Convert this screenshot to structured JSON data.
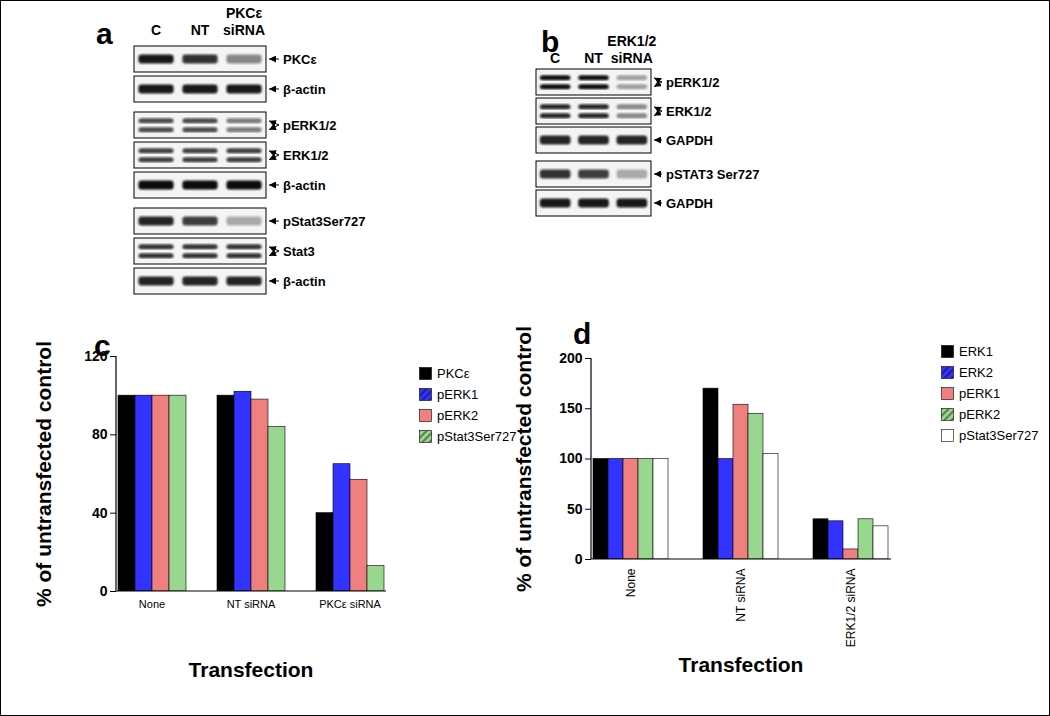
{
  "panels": [
    {
      "panel": "a",
      "lanes": [
        "C",
        "NT",
        "PKCε siRNA"
      ],
      "blocks": [
        [
          {
            "protein": "PKCε",
            "bands": 1,
            "intensity": [
              0.9,
              0.8,
              0.45
            ]
          },
          {
            "protein": "β-actin",
            "bands": 1,
            "intensity": [
              0.9,
              0.9,
              0.9
            ]
          }
        ],
        [
          {
            "protein": "pERK1/2",
            "bands": 2,
            "intensity": [
              0.7,
              0.7,
              0.5
            ]
          },
          {
            "protein": "ERK1/2",
            "bands": 2,
            "intensity": [
              0.75,
              0.75,
              0.75
            ]
          },
          {
            "protein": "β-actin",
            "bands": 1,
            "intensity": [
              0.95,
              0.95,
              0.95
            ]
          }
        ],
        [
          {
            "protein": "pStat3Ser727",
            "bands": 1,
            "intensity": [
              0.85,
              0.75,
              0.3
            ]
          },
          {
            "protein": "Stat3",
            "bands": 2,
            "intensity": [
              0.8,
              0.8,
              0.8
            ]
          },
          {
            "protein": "β-actin",
            "bands": 1,
            "intensity": [
              0.85,
              0.85,
              0.85
            ]
          }
        ]
      ]
    },
    {
      "panel": "b",
      "lanes": [
        "C",
        "NT",
        "ERK1/2 siRNA"
      ],
      "blocks": [
        [
          {
            "protein": "pERK1/2",
            "bands": 2,
            "intensity": [
              0.95,
              0.95,
              0.35
            ]
          },
          {
            "protein": "ERK1/2",
            "bands": 2,
            "intensity": [
              0.85,
              0.85,
              0.45
            ]
          },
          {
            "protein": "GAPDH",
            "bands": 1,
            "intensity": [
              0.85,
              0.85,
              0.85
            ]
          }
        ],
        [
          {
            "protein": "pSTAT3 Ser727",
            "bands": 1,
            "intensity": [
              0.8,
              0.75,
              0.3
            ]
          },
          {
            "protein": "GAPDH",
            "bands": 1,
            "intensity": [
              0.9,
              0.9,
              0.9
            ]
          }
        ]
      ]
    }
  ],
  "chart_data": [
    {
      "panel": "c",
      "type": "bar",
      "x_label": "Transfection",
      "y_label": "% of untransfected control",
      "categories": [
        "None",
        "NT siRNA",
        "PKCε siRNA"
      ],
      "series": [
        {
          "name": "PKCε",
          "color": "#000000",
          "values": [
            100,
            100,
            40
          ]
        },
        {
          "name": "pERK1",
          "color": "#3333ff",
          "values": [
            100,
            102,
            65
          ]
        },
        {
          "name": "pERK2",
          "color": "#f08080",
          "values": [
            100,
            98,
            57
          ]
        },
        {
          "name": "pStat3Ser727",
          "color": "#99d68f",
          "values": [
            100,
            84,
            13
          ]
        }
      ],
      "ylim": [
        0,
        120
      ],
      "yticks": [
        0,
        40,
        80,
        120
      ],
      "grid": false,
      "legend": "right"
    },
    {
      "panel": "d",
      "type": "bar",
      "x_label": "Transfection",
      "y_label": "% of untransfected control",
      "categories": [
        "None",
        "NT siRNA",
        "ERK1/2 siRNA"
      ],
      "series": [
        {
          "name": "ERK1",
          "color": "#000000",
          "values": [
            100,
            170,
            40
          ]
        },
        {
          "name": "ERK2",
          "color": "#3333ff",
          "values": [
            100,
            100,
            38
          ]
        },
        {
          "name": "pERK1",
          "color": "#f08080",
          "values": [
            100,
            154,
            10
          ]
        },
        {
          "name": "pERK2",
          "color": "#99d68f",
          "values": [
            100,
            145,
            40
          ]
        },
        {
          "name": "pStat3Ser727",
          "color": "#ffffff",
          "values": [
            100,
            105,
            33
          ]
        }
      ],
      "ylim": [
        0,
        200
      ],
      "yticks": [
        0,
        50,
        100,
        150,
        200
      ],
      "grid": false,
      "legend": "right"
    }
  ]
}
